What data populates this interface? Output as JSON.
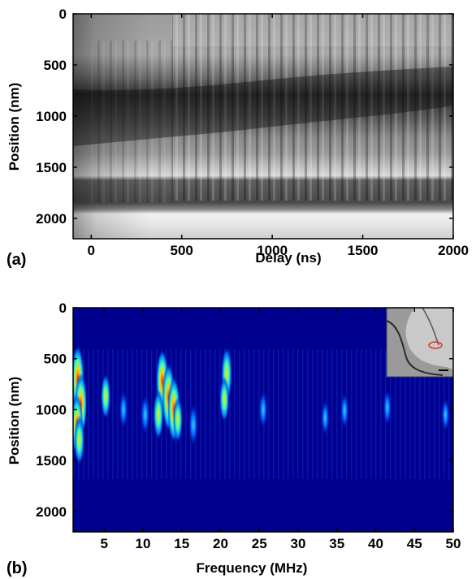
{
  "chart_data": [
    {
      "panel_label": "(a)",
      "type": "heatmap",
      "colormap": "grayscale",
      "xlabel": "Delay (ns)",
      "ylabel": "Position (nm)",
      "xlim": [
        -100,
        2000
      ],
      "ylim": [
        2200,
        0
      ],
      "x_ticks": [
        "0",
        "500",
        "1000",
        "1500",
        "2000"
      ],
      "y_ticks": [
        "0",
        "500",
        "1000",
        "1500",
        "2000"
      ],
      "x_tick_values": [
        0,
        500,
        1000,
        1500,
        2000
      ],
      "y_tick_values": [
        0,
        500,
        1000,
        1500,
        2000
      ],
      "features": {
        "oscillating_dark_band": {
          "position_center": [
            1150,
            800
          ],
          "delay_range": [
            0,
            2000
          ]
        },
        "bright_line_position": 1600,
        "dark_band_position": [
          1650,
          1900
        ],
        "bright_region_position": [
          1900,
          2200
        ],
        "transition_delay": 550
      }
    },
    {
      "panel_label": "(b)",
      "type": "heatmap",
      "colormap": "jet",
      "xlabel": "Frequency (MHz)",
      "ylabel": "Position (nm)",
      "xlim": [
        1,
        50
      ],
      "ylim": [
        2200,
        0
      ],
      "x_ticks": [
        "5",
        "10",
        "15",
        "20",
        "25",
        "30",
        "35",
        "40",
        "45",
        "50"
      ],
      "y_ticks": [
        "0",
        "500",
        "1000",
        "1500",
        "2000"
      ],
      "x_tick_values": [
        5,
        10,
        15,
        20,
        25,
        30,
        35,
        40,
        45,
        50
      ],
      "y_tick_values": [
        0,
        500,
        1000,
        1500,
        2000
      ],
      "hotspots": [
        {
          "frequency": 1.6,
          "position": 700,
          "intensity": 1.0
        },
        {
          "frequency": 2.0,
          "position": 950,
          "intensity": 0.9
        },
        {
          "frequency": 1.5,
          "position": 1150,
          "intensity": 0.85
        },
        {
          "frequency": 1.8,
          "position": 1300,
          "intensity": 0.6
        },
        {
          "frequency": 12.5,
          "position": 720,
          "intensity": 0.9
        },
        {
          "frequency": 13.3,
          "position": 880,
          "intensity": 1.0
        },
        {
          "frequency": 14.0,
          "position": 1000,
          "intensity": 0.95
        },
        {
          "frequency": 12.0,
          "position": 1050,
          "intensity": 0.6
        },
        {
          "frequency": 14.5,
          "position": 1100,
          "intensity": 0.5
        },
        {
          "frequency": 20.8,
          "position": 650,
          "intensity": 0.7
        },
        {
          "frequency": 20.5,
          "position": 900,
          "intensity": 0.5
        },
        {
          "frequency": 5.2,
          "position": 870,
          "intensity": 0.5
        },
        {
          "frequency": 7.5,
          "position": 1000,
          "intensity": 0.35
        },
        {
          "frequency": 10.3,
          "position": 1050,
          "intensity": 0.4
        },
        {
          "frequency": 16.5,
          "position": 1150,
          "intensity": 0.45
        },
        {
          "frequency": 25.5,
          "position": 1000,
          "intensity": 0.35
        },
        {
          "frequency": 33.5,
          "position": 1080,
          "intensity": 0.3
        },
        {
          "frequency": 36.0,
          "position": 1010,
          "intensity": 0.3
        },
        {
          "frequency": 41.5,
          "position": 980,
          "intensity": 0.3
        },
        {
          "frequency": 49.0,
          "position": 1050,
          "intensity": 0.25
        }
      ],
      "inset": {
        "description_hidden": true,
        "scale_bar": true
      }
    }
  ]
}
